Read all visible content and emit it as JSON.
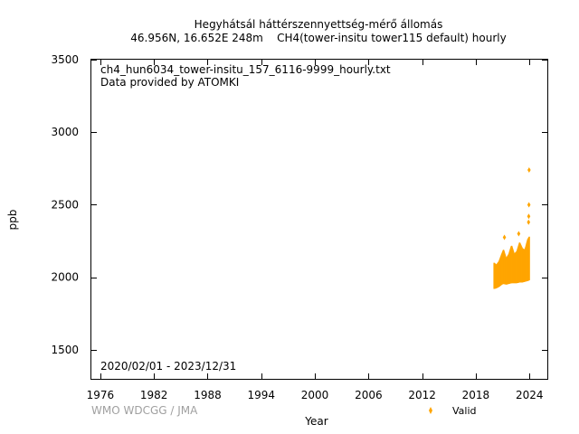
{
  "chart_data": {
    "type": "scatter",
    "title": "Hegyhátsál háttérszennyettség-mérő állomás",
    "subtitle": "46.956N, 16.652E 248m    CH4(tower-insitu tower115 default) hourly",
    "xlabel": "Year",
    "ylabel": "ppb",
    "xlim": [
      1975,
      2026
    ],
    "ylim": [
      1300,
      3500
    ],
    "x_ticks": [
      1976,
      1982,
      1988,
      1994,
      2000,
      2006,
      2012,
      2018,
      2024
    ],
    "y_ticks": [
      1500,
      2000,
      2500,
      3000,
      3500
    ],
    "grid": false,
    "legend_position": "bottom-right",
    "annotations": {
      "file": "ch4_hun6034_tower-insitu_157_6116-9999_hourly.txt",
      "provider": "Data provided by ATOMKI",
      "period": "2020/02/01 - 2023/12/31"
    },
    "footer": "WMO WDCGG / JMA",
    "series": [
      {
        "name": "Valid",
        "color": "#FFA500",
        "band": [
          {
            "x": 2020.05,
            "low": 1920,
            "high": 2100
          },
          {
            "x": 2020.3,
            "low": 1925,
            "high": 2085
          },
          {
            "x": 2020.6,
            "low": 1935,
            "high": 2110
          },
          {
            "x": 2020.9,
            "low": 1950,
            "high": 2160
          },
          {
            "x": 2021.1,
            "low": 1955,
            "high": 2190
          },
          {
            "x": 2021.4,
            "low": 1950,
            "high": 2130
          },
          {
            "x": 2021.7,
            "low": 1955,
            "high": 2160
          },
          {
            "x": 2022.0,
            "low": 1960,
            "high": 2220
          },
          {
            "x": 2022.3,
            "low": 1960,
            "high": 2160
          },
          {
            "x": 2022.6,
            "low": 1960,
            "high": 2180
          },
          {
            "x": 2022.9,
            "low": 1965,
            "high": 2240
          },
          {
            "x": 2023.2,
            "low": 1965,
            "high": 2200
          },
          {
            "x": 2023.5,
            "low": 1970,
            "high": 2190
          },
          {
            "x": 2023.8,
            "low": 1975,
            "high": 2260
          },
          {
            "x": 2023.98,
            "low": 1980,
            "high": 2280
          }
        ],
        "outliers": [
          {
            "x": 2021.2,
            "y": 2275
          },
          {
            "x": 2022.8,
            "y": 2300
          },
          {
            "x": 2023.9,
            "y": 2380
          },
          {
            "x": 2023.92,
            "y": 2420
          },
          {
            "x": 2023.94,
            "y": 2500
          },
          {
            "x": 2023.96,
            "y": 2740
          }
        ]
      }
    ]
  }
}
